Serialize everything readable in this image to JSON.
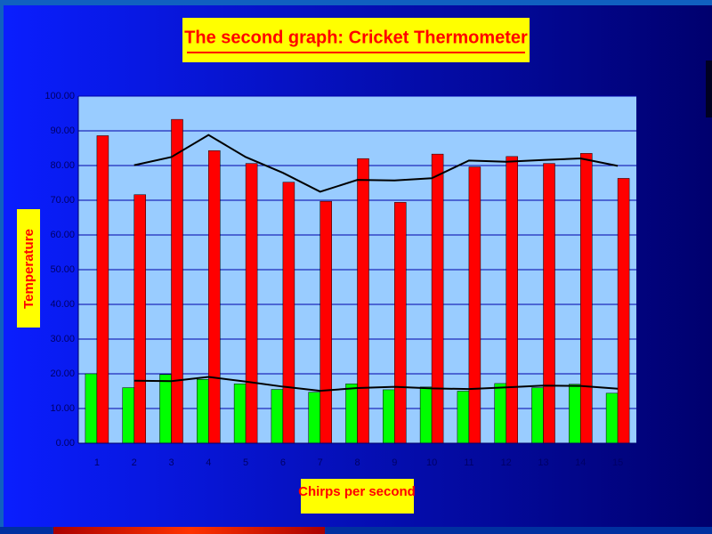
{
  "chart_data": {
    "type": "bar",
    "title": "The second graph: Cricket Thermometer",
    "x_label": "Chirps per second",
    "y_label": "Temperature",
    "categories": [
      "1",
      "2",
      "3",
      "4",
      "5",
      "6",
      "7",
      "8",
      "9",
      "10",
      "11",
      "12",
      "13",
      "14",
      "15"
    ],
    "series": [
      {
        "color": "#00ff00",
        "values": [
          20,
          16,
          19.8,
          18.4,
          17.1,
          15.5,
          14.7,
          17.1,
          15.4,
          16.2,
          15,
          17.2,
          16,
          17,
          14.4
        ]
      },
      {
        "color": "#ff0000",
        "values": [
          88.6,
          71.6,
          93.3,
          84.3,
          80.6,
          75.2,
          69.7,
          82,
          69.4,
          83.3,
          79.6,
          82.6,
          80.6,
          83.5,
          76.3
        ]
      },
      {
        "type": "line",
        "color": "#000000",
        "values": [
          null,
          18,
          17.9,
          19.1,
          17.75,
          16.3,
          15.1,
          15.9,
          16.25,
          15.8,
          15.6,
          16.1,
          16.6,
          16.5,
          15.7
        ]
      },
      {
        "type": "line",
        "color": "#000000",
        "values": [
          null,
          80.1,
          82.45,
          88.8,
          82.45,
          77.9,
          72.45,
          75.85,
          75.7,
          76.35,
          81.45,
          81.1,
          81.6,
          82.05,
          79.9
        ]
      }
    ],
    "ylim": [
      0,
      100
    ],
    "yticks": [
      {
        "value": 0,
        "label": "0.00"
      },
      {
        "value": 10,
        "label": "10.00"
      },
      {
        "value": 20,
        "label": "20.00"
      },
      {
        "value": 30,
        "label": "30.00"
      },
      {
        "value": 40,
        "label": "40.00"
      },
      {
        "value": 50,
        "label": "50.00"
      },
      {
        "value": 60,
        "label": "60.00"
      },
      {
        "value": 70,
        "label": "70.00"
      },
      {
        "value": 80,
        "label": "80.00"
      },
      {
        "value": 90,
        "label": "90.00"
      },
      {
        "value": 100,
        "label": "100.00"
      }
    ],
    "grid": true
  }
}
